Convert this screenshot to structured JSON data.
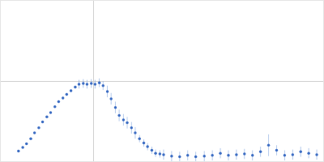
{
  "chart_data": {
    "type": "scatter",
    "x": [
      0.33,
      0.41,
      0.48,
      0.56,
      0.63,
      0.71,
      0.78,
      0.86,
      0.93,
      1.01,
      1.08,
      1.16,
      1.23,
      1.31,
      1.39,
      1.46,
      1.54,
      1.61,
      1.69,
      1.76,
      1.84,
      1.91,
      1.99,
      2.06,
      2.14,
      2.21,
      2.29,
      2.36,
      2.44,
      2.51,
      2.59,
      2.67,
      2.74,
      2.82,
      2.89,
      2.97,
      3.04,
      3.19,
      3.34,
      3.49,
      3.64,
      3.8,
      3.95,
      4.1,
      4.25,
      4.4,
      4.55,
      4.7,
      4.85,
      5.0,
      5.15,
      5.3,
      5.45,
      5.6,
      5.75,
      5.9
    ],
    "values": [
      0.14,
      0.19,
      0.24,
      0.31,
      0.39,
      0.46,
      0.54,
      0.61,
      0.67,
      0.75,
      0.82,
      0.87,
      0.92,
      0.97,
      1.02,
      1.06,
      1.07,
      1.06,
      1.07,
      1.06,
      1.08,
      1.04,
      0.96,
      0.86,
      0.74,
      0.63,
      0.57,
      0.53,
      0.46,
      0.39,
      0.31,
      0.25,
      0.2,
      0.15,
      0.11,
      0.1,
      0.09,
      0.07,
      0.06,
      0.08,
      0.06,
      0.07,
      0.08,
      0.11,
      0.08,
      0.09,
      0.1,
      0.08,
      0.13,
      0.22,
      0.15,
      0.08,
      0.09,
      0.13,
      0.11,
      0.09
    ],
    "errors": [
      0.01,
      0.01,
      0.01,
      0.01,
      0.01,
      0.01,
      0.01,
      0.01,
      0.01,
      0.01,
      0.02,
      0.02,
      0.02,
      0.02,
      0.02,
      0.06,
      0.06,
      0.06,
      0.06,
      0.06,
      0.06,
      0.06,
      0.08,
      0.08,
      0.08,
      0.08,
      0.08,
      0.08,
      0.08,
      0.08,
      0.05,
      0.05,
      0.05,
      0.05,
      0.05,
      0.05,
      0.07,
      0.07,
      0.07,
      0.07,
      0.07,
      0.07,
      0.07,
      0.07,
      0.07,
      0.07,
      0.07,
      0.07,
      0.07,
      0.15,
      0.07,
      0.07,
      0.07,
      0.07,
      0.07,
      0.07
    ],
    "color": "#3f6fc4",
    "marker": "circle",
    "xlim": [
      0,
      6.02
    ],
    "ylim": [
      0,
      2.208
    ],
    "xticks": [
      1.732
    ],
    "yticks": [
      1.104
    ],
    "grid": true,
    "tick_labels": false
  }
}
